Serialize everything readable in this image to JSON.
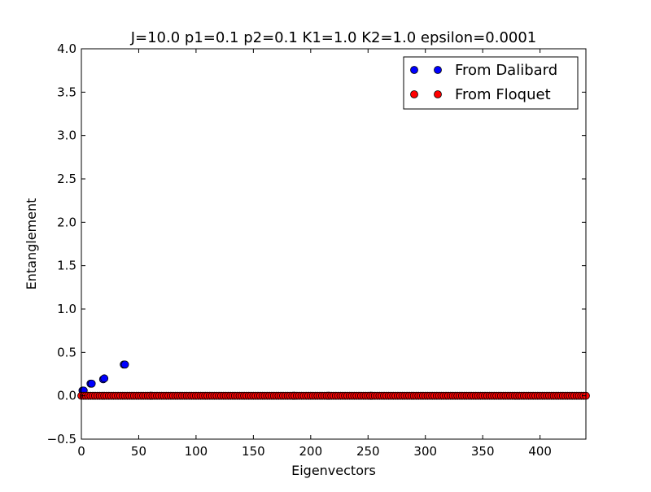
{
  "chart_data": {
    "type": "scatter",
    "title": "J=10.0 p1=0.1 p2=0.1 K1=1.0 K2=1.0 epsilon=0.0001",
    "xlabel": "Eigenvectors",
    "ylabel": "Entanglement",
    "xlim": [
      0,
      440
    ],
    "ylim": [
      -0.5,
      4.0
    ],
    "xticks": [
      0,
      50,
      100,
      150,
      200,
      250,
      300,
      350,
      400
    ],
    "xtick_labels": [
      "0",
      "50",
      "100",
      "150",
      "200",
      "250",
      "300",
      "350",
      "400"
    ],
    "yticks": [
      -0.5,
      0.0,
      0.5,
      1.0,
      1.5,
      2.0,
      2.5,
      3.0,
      3.5,
      4.0
    ],
    "ytick_labels": [
      "−0.5",
      "0.0",
      "0.5",
      "1.0",
      "1.5",
      "2.0",
      "2.5",
      "3.0",
      "3.5",
      "4.0"
    ],
    "grid": false,
    "legend_position": "top-right",
    "series": [
      {
        "name": "From Dalibard",
        "color": "#0000ff",
        "points": [
          [
            1,
            0.06
          ],
          [
            2,
            0.06
          ],
          [
            8,
            0.14
          ],
          [
            9,
            0.14
          ],
          [
            19,
            0.19
          ],
          [
            20,
            0.2
          ],
          [
            37,
            0.36
          ],
          [
            38,
            0.36
          ],
          [
            60,
            0.0
          ],
          [
            61,
            0.0
          ],
          [
            185,
            0.0
          ],
          [
            186,
            0.0
          ],
          [
            215,
            0.0
          ],
          [
            216,
            0.0
          ],
          [
            252,
            0.0
          ],
          [
            253,
            0.0
          ]
        ]
      },
      {
        "name": "From Floquet",
        "color": "#ff0000",
        "x_start": 0,
        "x_end": 440,
        "x_step": 2,
        "y_constant": 0.0
      }
    ]
  }
}
